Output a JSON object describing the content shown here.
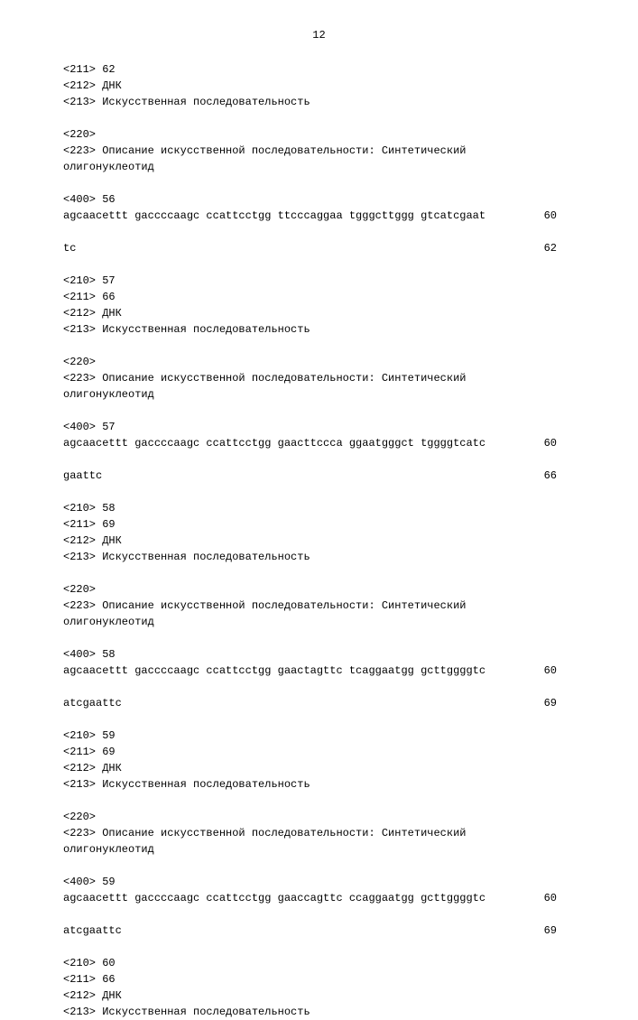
{
  "page_number": "12",
  "records": [
    {
      "header_lines": [
        "<211> 62",
        "<212> ДНК",
        "<213> Искусственная последовательность"
      ],
      "feature_lines": [
        "<220>",
        "<223> Описание искусственной последовательности: Синтетический",
        "олигонуклеотид"
      ],
      "origin": "<400> 56",
      "sequence_rows": [
        {
          "seq": "agcaacettt gaccccaagc ccattcctgg ttcccaggaa tgggcttggg gtcatcgaat",
          "pos": "60"
        },
        {
          "seq": "tc",
          "pos": "62"
        }
      ]
    },
    {
      "header_lines": [
        "<210> 57",
        "<211> 66",
        "<212> ДНК",
        "<213> Искусственная последовательность"
      ],
      "feature_lines": [
        "<220>",
        "<223> Описание искусственной последовательности: Синтетический",
        "олигонуклеотид"
      ],
      "origin": "<400> 57",
      "sequence_rows": [
        {
          "seq": "agcaacettt gaccccaagc ccattcctgg gaacttccca ggaatgggct tggggtcatc",
          "pos": "60"
        },
        {
          "seq": "gaattc",
          "pos": "66"
        }
      ]
    },
    {
      "header_lines": [
        "<210> 58",
        "<211> 69",
        "<212> ДНК",
        "<213> Искусственная последовательность"
      ],
      "feature_lines": [
        "<220>",
        "<223> Описание искусственной последовательности: Синтетический",
        "олигонуклеотид"
      ],
      "origin": "<400> 58",
      "sequence_rows": [
        {
          "seq": "agcaacettt gaccccaagc ccattcctgg gaactagttc tcaggaatgg gcttggggtc",
          "pos": "60"
        },
        {
          "seq": "atcgaattc",
          "pos": "69"
        }
      ]
    },
    {
      "header_lines": [
        "<210> 59",
        "<211> 69",
        "<212> ДНК",
        "<213> Искусственная последовательность"
      ],
      "feature_lines": [
        "<220>",
        "<223> Описание искусственной последовательности: Синтетический",
        "олигонуклеотид"
      ],
      "origin": "<400> 59",
      "sequence_rows": [
        {
          "seq": "agcaacettt gaccccaagc ccattcctgg gaaccagttc ccaggaatgg gcttggggtc",
          "pos": "60"
        },
        {
          "seq": "atcgaattc",
          "pos": "69"
        }
      ]
    },
    {
      "header_lines": [
        "<210> 60",
        "<211> 66",
        "<212> ДНК",
        "<213> Искусственная последовательность"
      ],
      "feature_lines": [],
      "origin": "",
      "sequence_rows": []
    }
  ]
}
